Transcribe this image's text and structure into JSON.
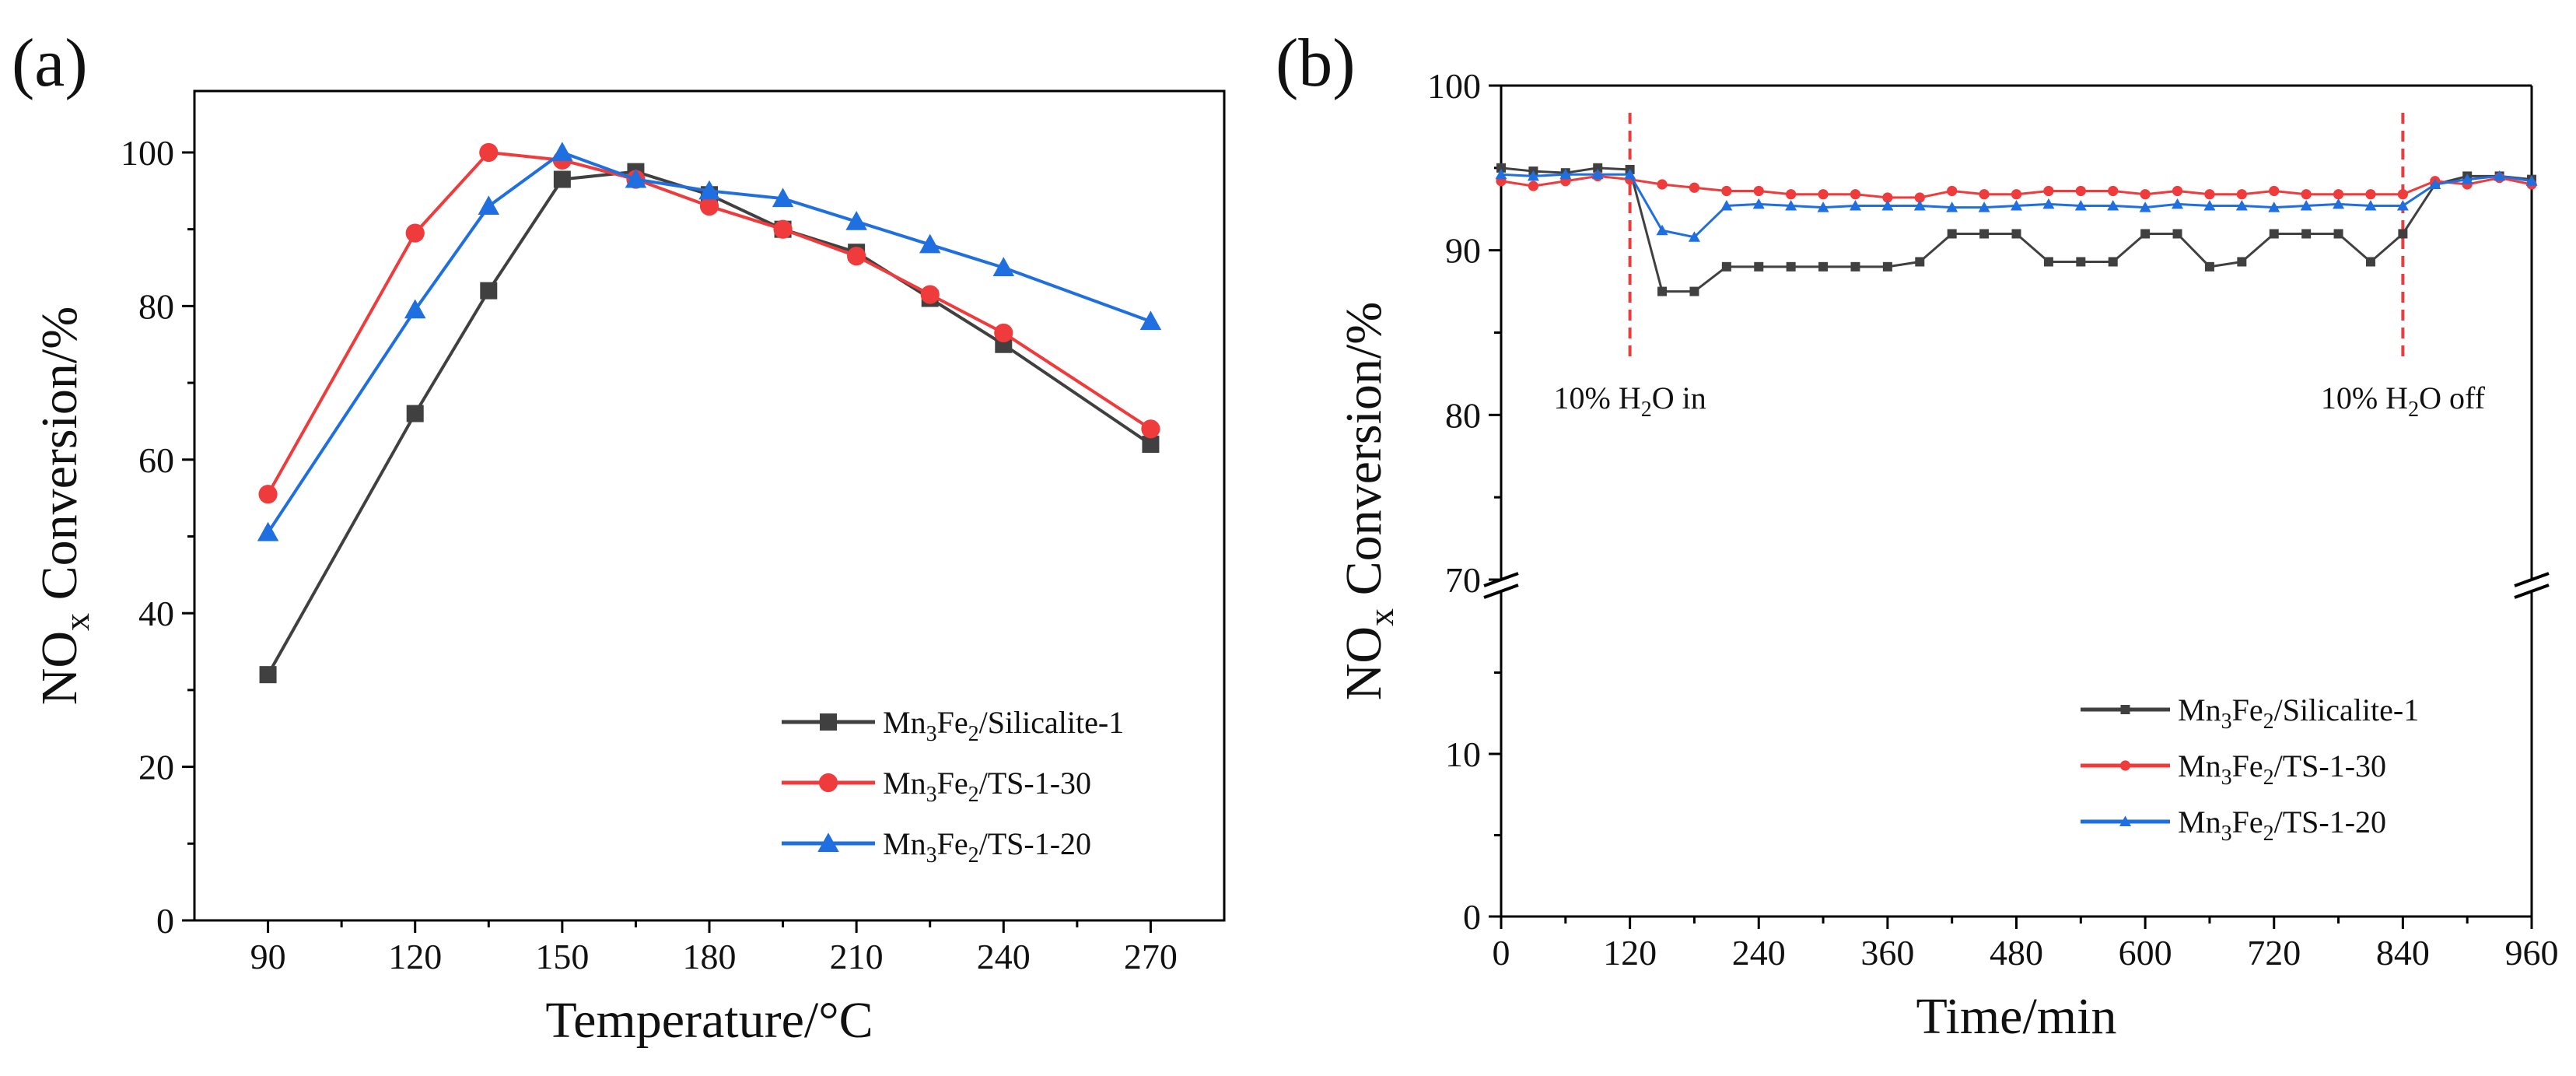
{
  "chart_data": [
    {
      "panel_label": "(a)",
      "type": "line",
      "xlabel": "Temperature/°C",
      "ylabel_main": "NO",
      "ylabel_sub": "x",
      "ylabel_rest": " Conversion/%",
      "xlim": [
        75,
        285
      ],
      "ylim": [
        0,
        108
      ],
      "xticks": [
        90,
        120,
        150,
        180,
        210,
        240,
        270
      ],
      "yticks": [
        0,
        20,
        40,
        60,
        80,
        100
      ],
      "legend_position": "bottom-right",
      "series": [
        {
          "name_main": "Mn",
          "sub1": "3",
          "mid": "Fe",
          "sub2": "2",
          "tail": "/Silicalite-1",
          "color": "#404040",
          "marker": "square",
          "x": [
            90,
            120,
            135,
            150,
            165,
            180,
            195,
            210,
            225,
            240,
            270
          ],
          "y": [
            32,
            66,
            82,
            96.5,
            97.5,
            94.5,
            90,
            87,
            81,
            75,
            62
          ]
        },
        {
          "name_main": "Mn",
          "sub1": "3",
          "mid": "Fe",
          "sub2": "2",
          "tail": "/TS-1-30",
          "color": "#ef3b3b",
          "marker": "circle",
          "x": [
            90,
            120,
            135,
            150,
            165,
            180,
            195,
            210,
            225,
            240,
            270
          ],
          "y": [
            55.5,
            89.5,
            100,
            99,
            96.5,
            93,
            90,
            86.5,
            81.5,
            76.5,
            64
          ]
        },
        {
          "name_main": "Mn",
          "sub1": "3",
          "mid": "Fe",
          "sub2": "2",
          "tail": "/TS-1-20",
          "color": "#1f6fe0",
          "marker": "triangle",
          "x": [
            90,
            120,
            135,
            150,
            165,
            180,
            195,
            210,
            225,
            240,
            270
          ],
          "y": [
            50.5,
            79.5,
            93,
            100,
            96.5,
            95,
            94,
            91,
            88,
            85,
            78
          ]
        }
      ]
    },
    {
      "panel_label": "(b)",
      "type": "line",
      "xlabel": "Time/min",
      "ylabel_main": "NO",
      "ylabel_sub": "x",
      "ylabel_rest": " Conversion/%",
      "xlim": [
        0,
        960
      ],
      "ylim_upper": [
        70,
        100
      ],
      "ylim_lower": [
        0,
        20
      ],
      "axis_break_between": [
        20,
        70
      ],
      "xticks": [
        0,
        120,
        240,
        360,
        480,
        600,
        720,
        840,
        960
      ],
      "yticks_upper": [
        70,
        80,
        90,
        100
      ],
      "yticks_lower": [
        0,
        10
      ],
      "legend_position": "lower-right",
      "annotations": [
        {
          "x": 120,
          "pre": "10% H",
          "sub": "2",
          "post": "O in",
          "color": "#ef3b3b"
        },
        {
          "x": 840,
          "pre": "10% H",
          "sub": "2",
          "post": "O off",
          "color": "#ef3b3b"
        }
      ],
      "series": [
        {
          "name_main": "Mn",
          "sub1": "3",
          "mid": "Fe",
          "sub2": "2",
          "tail": "/Silicalite-1",
          "color": "#404040",
          "marker": "square",
          "x": [
            0,
            30,
            60,
            90,
            120,
            150,
            180,
            210,
            240,
            270,
            300,
            330,
            360,
            390,
            420,
            450,
            480,
            510,
            540,
            570,
            600,
            630,
            660,
            690,
            720,
            750,
            780,
            810,
            840,
            870,
            900,
            930,
            960
          ],
          "y": [
            95,
            94.8,
            94.7,
            95,
            94.9,
            87.5,
            87.5,
            89,
            89,
            89,
            89,
            89,
            89,
            89.3,
            91,
            91,
            91,
            89.3,
            89.3,
            89.3,
            91,
            91,
            89,
            89.3,
            91,
            91,
            91,
            89.3,
            91,
            94,
            94.5,
            94.5,
            94.3
          ]
        },
        {
          "name_main": "Mn",
          "sub1": "3",
          "mid": "Fe",
          "sub2": "2",
          "tail": "/TS-1-30",
          "color": "#ef3b3b",
          "marker": "circle",
          "x": [
            0,
            30,
            60,
            90,
            120,
            150,
            180,
            210,
            240,
            270,
            300,
            330,
            360,
            390,
            420,
            450,
            480,
            510,
            540,
            570,
            600,
            630,
            660,
            690,
            720,
            750,
            780,
            810,
            840,
            870,
            900,
            930,
            960
          ],
          "y": [
            94.2,
            93.9,
            94.2,
            94.5,
            94.3,
            94,
            93.8,
            93.6,
            93.6,
            93.4,
            93.4,
            93.4,
            93.2,
            93.2,
            93.6,
            93.4,
            93.4,
            93.6,
            93.6,
            93.6,
            93.4,
            93.6,
            93.4,
            93.4,
            93.6,
            93.4,
            93.4,
            93.4,
            93.4,
            94.2,
            94,
            94.4,
            94
          ]
        },
        {
          "name_main": "Mn",
          "sub1": "3",
          "mid": "Fe",
          "sub2": "2",
          "tail": "/TS-1-20",
          "color": "#1f6fe0",
          "marker": "triangle",
          "x": [
            0,
            30,
            60,
            90,
            120,
            150,
            180,
            210,
            240,
            270,
            300,
            330,
            360,
            390,
            420,
            450,
            480,
            510,
            540,
            570,
            600,
            630,
            660,
            690,
            720,
            750,
            780,
            810,
            840,
            870,
            900,
            930,
            960
          ],
          "y": [
            94.6,
            94.5,
            94.6,
            94.6,
            94.6,
            91.2,
            90.8,
            92.7,
            92.8,
            92.7,
            92.6,
            92.7,
            92.7,
            92.7,
            92.6,
            92.6,
            92.7,
            92.8,
            92.7,
            92.7,
            92.6,
            92.8,
            92.7,
            92.7,
            92.6,
            92.7,
            92.8,
            92.7,
            92.7,
            94,
            94.3,
            94.5,
            94.2
          ]
        }
      ]
    }
  ]
}
